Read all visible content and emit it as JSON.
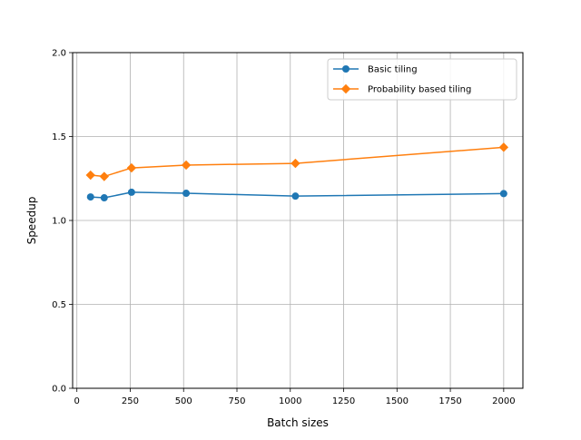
{
  "chart_data": {
    "type": "line",
    "title": "",
    "xlabel": "Batch sizes",
    "ylabel": "Speedup",
    "xlim": [
      -20,
      2090
    ],
    "ylim": [
      0,
      2.0
    ],
    "xticks": [
      0,
      250,
      500,
      750,
      1000,
      1250,
      1500,
      1750,
      2000
    ],
    "yticks": [
      0.0,
      0.5,
      1.0,
      1.5,
      2.0
    ],
    "xtick_labels": [
      "0",
      "250",
      "500",
      "750",
      "1000",
      "1250",
      "1500",
      "1750",
      "2000"
    ],
    "ytick_labels": [
      "0.0",
      "0.5",
      "1.0",
      "1.5",
      "2.0"
    ],
    "grid": true,
    "legend_position": "top-right",
    "x": [
      64,
      128,
      256,
      512,
      1024,
      2000
    ],
    "series": [
      {
        "name": "Basic tiling",
        "values": [
          1.14,
          1.135,
          1.168,
          1.162,
          1.145,
          1.16
        ],
        "color": "#1f77b4",
        "marker": "circle"
      },
      {
        "name": "Probability based tiling",
        "values": [
          1.27,
          1.262,
          1.313,
          1.33,
          1.34,
          1.436
        ],
        "color": "#ff7f0e",
        "marker": "diamond"
      }
    ]
  }
}
